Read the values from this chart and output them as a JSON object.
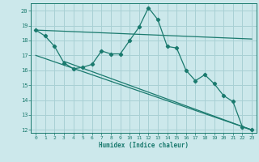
{
  "xlabel": "Humidex (Indice chaleur)",
  "ylabel": "",
  "background_color": "#cce8eb",
  "grid_color": "#a8d0d4",
  "line_color": "#1a7a6e",
  "xlim": [
    -0.5,
    23.5
  ],
  "ylim": [
    11.8,
    20.5
  ],
  "yticks": [
    12,
    13,
    14,
    15,
    16,
    17,
    18,
    19,
    20
  ],
  "xticks": [
    0,
    1,
    2,
    3,
    4,
    5,
    6,
    7,
    8,
    9,
    10,
    11,
    12,
    13,
    14,
    15,
    16,
    17,
    18,
    19,
    20,
    21,
    22,
    23
  ],
  "curve1_x": [
    0,
    1,
    2,
    3,
    4,
    5,
    6,
    7,
    8,
    9,
    10,
    11,
    12,
    13,
    14,
    15,
    16,
    17,
    18,
    19,
    20,
    21,
    22,
    23
  ],
  "curve1_y": [
    18.7,
    18.3,
    17.6,
    16.5,
    16.1,
    16.2,
    16.4,
    17.3,
    17.1,
    17.1,
    18.0,
    18.9,
    20.2,
    19.4,
    17.6,
    17.5,
    16.0,
    15.3,
    15.7,
    15.1,
    14.3,
    13.9,
    12.2,
    12.0
  ],
  "line1_x": [
    0,
    23
  ],
  "line1_y": [
    18.7,
    18.1
  ],
  "line2_x": [
    0,
    23
  ],
  "line2_y": [
    17.0,
    12.0
  ],
  "line3_x": [
    3,
    23
  ],
  "line3_y": [
    16.6,
    12.0
  ]
}
